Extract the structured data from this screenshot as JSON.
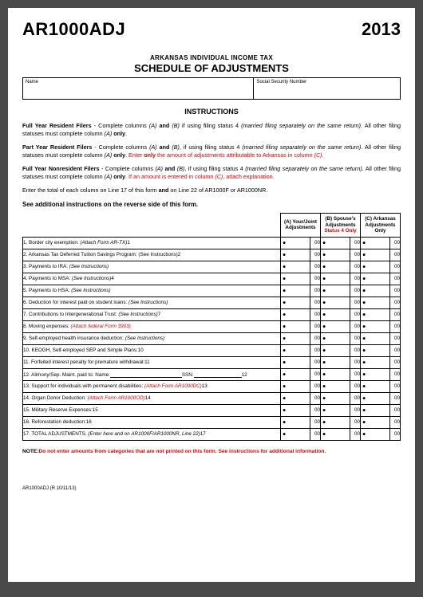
{
  "header": {
    "form_code": "AR1000ADJ",
    "year": "2013",
    "subtitle": "ARKANSAS INDIVIDUAL INCOME TAX",
    "title": "SCHEDULE OF ADJUSTMENTS",
    "name_label": "Name",
    "ssn_label": "Social Security Number"
  },
  "instructions": {
    "heading": "INSTRUCTIONS",
    "p1_bold": "Full Year Resident Filers",
    "p1_a": " - Complete columns ",
    "p1_ia": "(A)",
    "p1_and": " and ",
    "p1_ib": "(B)",
    "p1_b": " if using filing status 4 ",
    "p1_ic": "(married filing separately on the same return)",
    "p1_c": ".  All other filing statuses must complete column ",
    "p1_id": "(A)",
    "p1_only": " only",
    "p1_dot": ".",
    "p2_bold": "Part Year Resident Filers",
    "p2_a": " - Complete columns ",
    "p2_ia": "(A)",
    "p2_and": " and ",
    "p2_ib": "(B)",
    "p2_b": ", if using filing status 4 ",
    "p2_ic": "(married filing separately on the same return)",
    "p2_c": ".  All other filing statuses must complete column ",
    "p2_id": "(A)",
    "p2_only": " only",
    "p2_dot": ".  ",
    "p2_red_a": "Enter ",
    "p2_red_only": "only",
    "p2_red_b": " the amount of adjustments attributable to Arkansas in column ",
    "p2_red_ic": "(C)",
    "p2_red_dot": ".",
    "p3_bold": "Full Year Nonresident Filers",
    "p3_a": " - Complete columns ",
    "p3_ia": "(A)",
    "p3_and": " and ",
    "p3_ib": "(B)",
    "p3_b": ", if using filing status 4 ",
    "p3_ic": "(married filing separately on the same return)",
    "p3_c": ".  All other filing statuses must complete column ",
    "p3_id": "(A)",
    "p3_only": " only",
    "p3_dot": ".  ",
    "p3_red_a": "If an amount is entered in column ",
    "p3_red_ic": "(C)",
    "p3_red_b": ", attach explanation.",
    "p4_a": "Enter the total of each column on Line 17 of this form ",
    "p4_and": "and",
    "p4_b": " on Line 22 of AR1000F or AR1000NR.",
    "see_additional": "See additional instructions on the reverse side of this form."
  },
  "columns": {
    "a": "(A) Your/Joint Adjustments",
    "b1": "(B) Spouse's Adjustments",
    "b2": "Status 4 Only",
    "c": "(C) Arkansas Adjustments Only"
  },
  "cents": "00",
  "lines": [
    {
      "n": "1",
      "text": "1. Border city exemption: ",
      "ital": "(Attach Form AR-TX)",
      "tail": "1"
    },
    {
      "n": "2",
      "text": "2. Arkansas Tax Deferred Tuition Savings Program: (See Instructions)2",
      "ital": "",
      "tail": ""
    },
    {
      "n": "3",
      "text": "3. Payments to IRA: ",
      "ital": "(See Instructions)",
      "tail": ""
    },
    {
      "n": "4",
      "text": "4. Payments to MSA: ",
      "ital": "(See Instructions)",
      "tail": "4"
    },
    {
      "n": "5",
      "text": "5. Payments to HSA: ",
      "ital": "(See Instructions)",
      "tail": ""
    },
    {
      "n": "6",
      "text": "6. Deduction for interest paid on student loans: ",
      "ital": "(See Instructions)",
      "tail": ""
    },
    {
      "n": "7",
      "text": "7. Contributions to Intergenerational Trust: ",
      "ital": "(See Instructions)",
      "tail": "7"
    },
    {
      "n": "8",
      "text": "8. Moving expenses: ",
      "ital": "",
      "red_ital": "(Attach federal Form 3903)",
      "tail": ""
    },
    {
      "n": "9",
      "text": "9. Self-employed health insurance deduction: ",
      "ital": "(See Instructions)",
      "tail": ""
    },
    {
      "n": "10",
      "text": "10. KEOGH, Self-employed SEP and Simple Plans:10",
      "ital": "",
      "tail": ""
    },
    {
      "n": "11",
      "text": "11. Forfeited interest penalty for premature withdrawal:11",
      "ital": "",
      "tail": ""
    },
    {
      "n": "12",
      "text": "12. Alimony/Sep. Maint. paid to: Name:",
      "ital": "",
      "tail": "",
      "is_alimony": true,
      "ssn_label": "SSN:",
      "end": "12"
    },
    {
      "n": "13",
      "text": "13. Support for individuals with permanent disabilities: ",
      "ital": "",
      "red_ital": "(Attach Form AR1000DC)",
      "tail": "13"
    },
    {
      "n": "14",
      "text": "14. Organ Donor Deduction: ",
      "ital": "",
      "red_ital": "(Attach Form AR1000OD)",
      "tail": "14"
    },
    {
      "n": "15",
      "text": "15. Military Reserve Expenses:15",
      "ital": "",
      "tail": ""
    },
    {
      "n": "16",
      "text": "16. Reforestation deduction:16",
      "ital": "",
      "tail": ""
    },
    {
      "n": "17",
      "text": "17. TOTAL ADJUSTMENTS. ",
      "ital": "(Enter here and on AR1000F/AR1000NR, Line 22)",
      "tail": "17"
    }
  ],
  "note": {
    "label": "NOTE:",
    "text": "Do not enter amounts from categories that are not printed on this form.  See instructions for additional information."
  },
  "footer": "AR1000ADJ (R 10/11/13)"
}
